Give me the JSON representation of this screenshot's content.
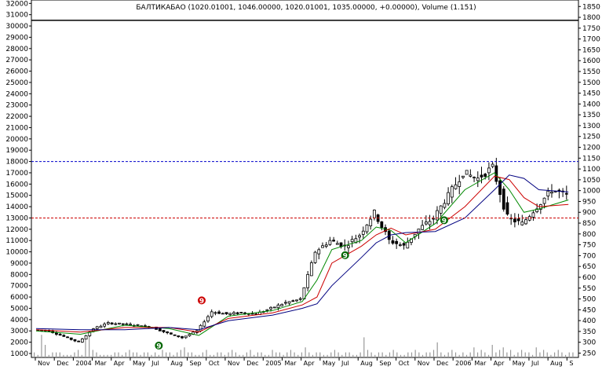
{
  "title": "БАЛТИКАБАО (1020.01001, 1046.00000, 1020.01001, 1035.00000, +0.00000), Volume (1.151)",
  "chart_data": {
    "type": "candlestick",
    "left_axis": {
      "ticks": [
        1000,
        2000,
        3000,
        4000,
        5000,
        6000,
        7000,
        8000,
        9000,
        10000,
        11000,
        12000,
        13000,
        14000,
        15000,
        16000,
        17000,
        18000,
        19000,
        20000,
        21000,
        22000,
        23000,
        24000,
        25000,
        26000,
        27000,
        28000,
        29000,
        30000,
        31000,
        32000
      ],
      "range": [
        650,
        32300
      ]
    },
    "right_axis": {
      "ticks": [
        250,
        300,
        350,
        400,
        450,
        500,
        550,
        600,
        650,
        700,
        750,
        800,
        850,
        900,
        950,
        1000,
        1050,
        1100,
        1150,
        1200,
        1250,
        1300,
        1350,
        1400,
        1450,
        1500,
        1550,
        1600,
        1650,
        1700,
        1750,
        1800,
        1850
      ],
      "range": [
        230,
        1880
      ]
    },
    "x_labels": [
      "Nov",
      "Dec",
      "2004",
      "Mar",
      "Apr",
      "May",
      "Jul",
      "Aug",
      "Sep",
      "Oct",
      "Nov",
      "Dec",
      "2005",
      "Mar",
      "Apr",
      "May",
      "Jul",
      "Aug",
      "Sep",
      "Oct",
      "Nov",
      "Dec",
      "2006",
      "Mar",
      "Apr",
      "May",
      "Jul",
      "Aug",
      "S"
    ],
    "horizontal_lines": [
      {
        "value": 30500,
        "style": "solid",
        "color": "#000000"
      },
      {
        "value": 18000,
        "style": "dashed",
        "color": "#0000cc"
      },
      {
        "value": 13000,
        "style": "dashed",
        "color": "#cc0000"
      }
    ],
    "markers": [
      {
        "label": "9",
        "color": "#006600",
        "x_index": 8.3,
        "value": 1700
      },
      {
        "label": "9",
        "color": "#cc0000",
        "x_index": 11.2,
        "value": 5700
      },
      {
        "label": "9",
        "color": "#006600",
        "x_index": 20.9,
        "value": 9700
      },
      {
        "label": "9",
        "color": "#006600",
        "x_index": 27.6,
        "value": 12800
      }
    ],
    "close_path": [
      [
        0,
        3100
      ],
      [
        1,
        3000
      ],
      [
        2,
        2500
      ],
      [
        3,
        2000
      ],
      [
        4,
        3200
      ],
      [
        5,
        3700
      ],
      [
        6,
        3600
      ],
      [
        7,
        3500
      ],
      [
        8,
        3300
      ],
      [
        9,
        2800
      ],
      [
        10,
        2400
      ],
      [
        11,
        3000
      ],
      [
        12,
        4700
      ],
      [
        13,
        4500
      ],
      [
        14,
        4600
      ],
      [
        15,
        4500
      ],
      [
        16,
        5000
      ],
      [
        17,
        5500
      ],
      [
        18,
        5800
      ],
      [
        19,
        10000
      ],
      [
        20,
        11000
      ],
      [
        21,
        10500
      ],
      [
        22,
        11500
      ],
      [
        23,
        13500
      ],
      [
        24,
        11000
      ],
      [
        25,
        10500
      ],
      [
        26,
        12000
      ],
      [
        27,
        13000
      ],
      [
        28,
        15000
      ],
      [
        29,
        17000
      ],
      [
        30,
        16500
      ],
      [
        31,
        17500
      ],
      [
        32,
        13000
      ],
      [
        33,
        12500
      ],
      [
        34,
        14000
      ],
      [
        35,
        15500
      ],
      [
        36,
        15000
      ]
    ],
    "moving_averages": [
      {
        "color": "#008800",
        "points": [
          [
            0,
            3000
          ],
          [
            3,
            2700
          ],
          [
            6,
            3500
          ],
          [
            9,
            3200
          ],
          [
            11,
            2600
          ],
          [
            13,
            4300
          ],
          [
            16,
            4800
          ],
          [
            18,
            5600
          ],
          [
            19,
            7500
          ],
          [
            20,
            10200
          ],
          [
            22,
            11000
          ],
          [
            23,
            12200
          ],
          [
            24,
            11900
          ],
          [
            25,
            10800
          ],
          [
            27,
            12500
          ],
          [
            29,
            15500
          ],
          [
            31,
            17000
          ],
          [
            32,
            15500
          ],
          [
            33,
            13500
          ],
          [
            34,
            13800
          ],
          [
            36,
            14600
          ]
        ]
      },
      {
        "color": "#cc0000",
        "points": [
          [
            0,
            3100
          ],
          [
            3,
            2900
          ],
          [
            6,
            3300
          ],
          [
            9,
            3300
          ],
          [
            11,
            2900
          ],
          [
            13,
            4100
          ],
          [
            16,
            4600
          ],
          [
            18,
            5300
          ],
          [
            19,
            6000
          ],
          [
            20,
            9000
          ],
          [
            22,
            10500
          ],
          [
            23,
            11500
          ],
          [
            24,
            12100
          ],
          [
            25,
            11500
          ],
          [
            27,
            12000
          ],
          [
            29,
            14000
          ],
          [
            31,
            16700
          ],
          [
            32,
            16400
          ],
          [
            33,
            14800
          ],
          [
            34,
            14000
          ],
          [
            36,
            14200
          ]
        ]
      },
      {
        "color": "#000080",
        "points": [
          [
            0,
            3200
          ],
          [
            3,
            3100
          ],
          [
            6,
            3100
          ],
          [
            9,
            3300
          ],
          [
            11,
            3100
          ],
          [
            13,
            3900
          ],
          [
            16,
            4400
          ],
          [
            18,
            5000
          ],
          [
            19,
            5400
          ],
          [
            20,
            7000
          ],
          [
            22,
            9500
          ],
          [
            23,
            10800
          ],
          [
            24,
            11500
          ],
          [
            25,
            11700
          ],
          [
            27,
            11800
          ],
          [
            29,
            13000
          ],
          [
            31,
            15500
          ],
          [
            32,
            16800
          ],
          [
            33,
            16500
          ],
          [
            34,
            15500
          ],
          [
            36,
            15300
          ]
        ]
      }
    ],
    "volume": [
      2,
      1,
      9,
      5,
      1,
      2,
      2,
      2,
      1,
      1,
      1,
      2,
      3,
      1,
      9,
      10,
      3,
      2,
      1,
      1,
      1,
      1,
      2,
      2,
      1,
      2,
      3,
      2,
      2,
      1,
      2,
      2,
      1,
      2,
      1,
      3,
      2,
      2,
      1,
      2,
      3,
      4,
      2,
      2,
      1,
      1,
      2,
      3,
      1,
      1,
      2,
      2,
      1,
      2,
      3,
      2,
      1,
      1,
      2,
      3,
      1,
      2,
      2,
      1,
      1,
      3,
      2,
      2,
      1,
      2,
      3,
      2,
      1,
      2,
      4,
      2,
      1,
      2,
      2,
      1,
      1,
      2,
      3,
      2,
      1,
      2,
      2,
      1,
      1,
      2,
      8,
      3,
      2,
      1,
      2,
      2,
      1,
      2,
      3,
      2,
      1,
      1,
      2,
      2,
      3,
      2,
      1,
      2,
      2,
      3,
      6,
      2,
      1,
      2,
      3,
      2,
      1,
      2,
      1,
      2,
      4,
      2,
      3,
      2,
      1,
      5,
      2,
      3,
      4,
      2,
      3,
      1,
      2,
      3,
      2,
      2,
      1,
      4,
      2,
      3,
      2,
      1,
      2,
      3,
      2,
      1,
      2,
      2
    ]
  }
}
